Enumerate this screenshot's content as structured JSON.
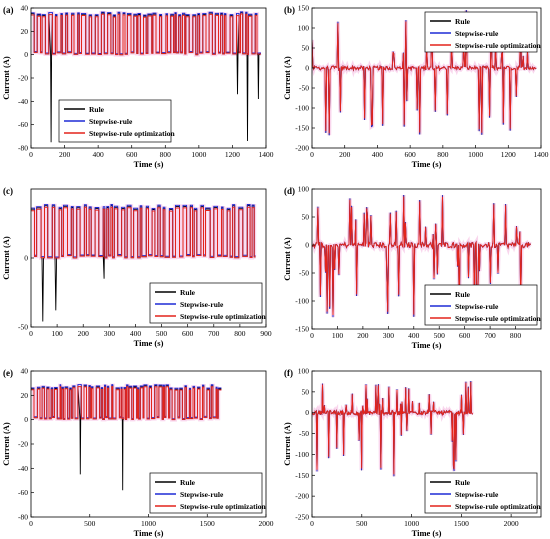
{
  "colors": {
    "rule": "#000000",
    "stepwise_rule": "#1f2bd6",
    "stepwise_rule_optimization": "#e3241b",
    "highlight": "#f7c5e6",
    "axis": "#000000",
    "background": "#ffffff"
  },
  "chart_data": [
    {
      "panel": "(a)",
      "type": "line",
      "title": "",
      "xlabel": "Time (s)",
      "ylabel": "Current (A)",
      "xlim": [
        0,
        1400
      ],
      "ylim": [
        -80,
        40
      ],
      "xticks": [
        0,
        200,
        400,
        600,
        800,
        1000,
        1200,
        1400
      ],
      "yticks": [
        -80,
        -60,
        -40,
        -20,
        0,
        20,
        40
      ],
      "grid": false,
      "legend": "bottom-left",
      "legend_entries": [
        "Rule",
        "Stepwise-rule",
        "Stepwise-rule optimization"
      ],
      "summary": {
        "x_end": 1370,
        "upper_level": 36,
        "lower_level": 0,
        "dips": [
          [
            120,
            -75
          ],
          [
            1230,
            -34
          ],
          [
            1290,
            -74
          ],
          [
            1355,
            -38
          ]
        ]
      }
    },
    {
      "panel": "(b)",
      "type": "line",
      "title": "",
      "xlabel": "Time (s)",
      "ylabel": "Current (A)",
      "xlim": [
        0,
        1400
      ],
      "ylim": [
        -200,
        150
      ],
      "xticks": [
        0,
        200,
        400,
        600,
        800,
        1000,
        1200,
        1400
      ],
      "yticks": [
        -200,
        -150,
        -100,
        -50,
        0,
        50,
        100,
        150
      ],
      "grid": false,
      "legend": "top-right",
      "legend_entries": [
        "Rule",
        "Stepwise-rule",
        "Stepwise-rule optimization"
      ],
      "summary": {
        "x_end": 1370,
        "max": 145,
        "min": -180
      }
    },
    {
      "panel": "(c)",
      "type": "line",
      "title": "",
      "xlabel": "Time (s)",
      "ylabel": "Current (A)",
      "xlim": [
        0,
        900
      ],
      "ylim": [
        -50,
        50
      ],
      "xticks": [
        0,
        100,
        200,
        300,
        400,
        500,
        600,
        700,
        800,
        900
      ],
      "yticks": [
        -50,
        0
      ],
      "grid": false,
      "legend": "bottom-right",
      "legend_entries": [
        "Rule",
        "Stepwise-rule",
        "Stepwise-rule optimization"
      ],
      "summary": {
        "x_end": 860,
        "upper_level": 38,
        "lower_level": 0,
        "dips": [
          [
            45,
            -46
          ],
          [
            95,
            -38
          ],
          [
            280,
            -15
          ]
        ]
      }
    },
    {
      "panel": "(d)",
      "type": "line",
      "title": "",
      "xlabel": "Time (s)",
      "ylabel": "Current (A)",
      "xlim": [
        0,
        900
      ],
      "ylim": [
        -150,
        100
      ],
      "xticks": [
        0,
        100,
        200,
        300,
        400,
        500,
        600,
        700,
        800
      ],
      "yticks": [
        -150,
        -100,
        -50,
        0,
        50,
        100
      ],
      "grid": false,
      "legend": "bottom-right",
      "legend_entries": [
        "Rule",
        "Stepwise-rule",
        "Stepwise-rule optimization"
      ],
      "summary": {
        "x_end": 860,
        "max": 95,
        "min": -140
      }
    },
    {
      "panel": "(e)",
      "type": "line",
      "title": "",
      "xlabel": "Time (s)",
      "ylabel": "Current (A)",
      "xlim": [
        0,
        2000
      ],
      "ylim": [
        -80,
        40
      ],
      "xticks": [
        0,
        500,
        1000,
        1500,
        2000
      ],
      "yticks": [
        -80,
        -60,
        -40,
        -20,
        0,
        20,
        40
      ],
      "grid": false,
      "legend": "bottom-right",
      "legend_entries": [
        "Rule",
        "Stepwise-rule",
        "Stepwise-rule optimization"
      ],
      "summary": {
        "x_end": 1620,
        "upper_level": 28,
        "lower_level": 0,
        "dips": [
          [
            420,
            -45
          ],
          [
            780,
            -58
          ]
        ]
      }
    },
    {
      "panel": "(f)",
      "type": "line",
      "title": "",
      "xlabel": "Time (s)",
      "ylabel": "Current (A)",
      "xlim": [
        0,
        2300
      ],
      "ylim": [
        -250,
        100
      ],
      "xticks": [
        0,
        500,
        1000,
        1500,
        2000
      ],
      "yticks": [
        -250,
        -200,
        -150,
        -100,
        -50,
        0,
        50,
        100
      ],
      "grid": false,
      "legend": "bottom-right",
      "legend_entries": [
        "Rule",
        "Stepwise-rule",
        "Stepwise-rule optimization"
      ],
      "summary": {
        "x_end": 1620,
        "max": 80,
        "min": -175
      }
    }
  ]
}
